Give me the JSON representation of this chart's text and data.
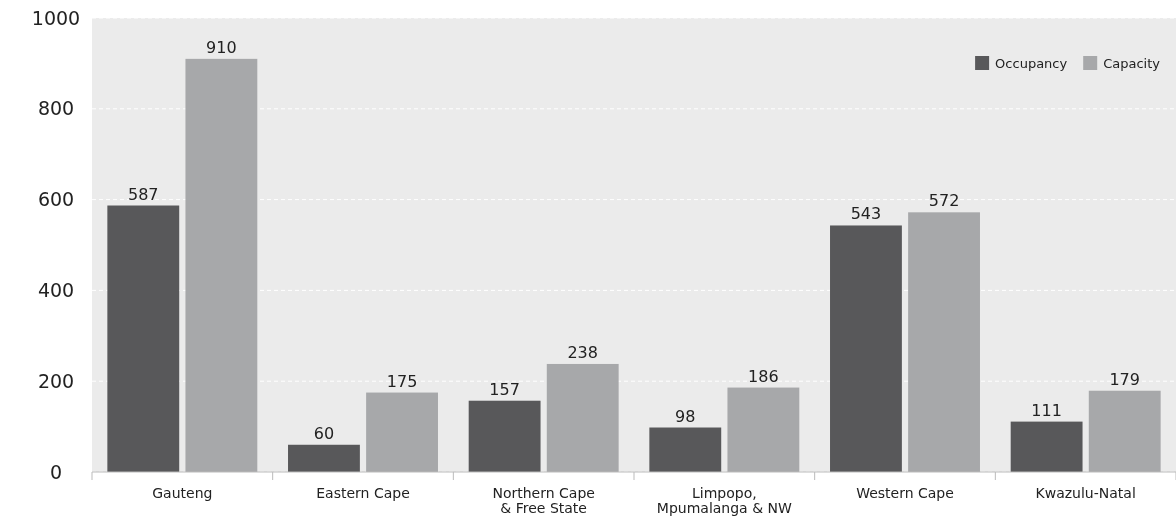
{
  "chart_data": {
    "type": "bar",
    "categories": [
      "Gauteng",
      "Eastern Cape",
      "Northern Cape\n& Free State",
      "Limpopo,\nMpumalanga & NW",
      "Western Cape",
      "Kwazulu-Natal"
    ],
    "series": [
      {
        "name": "Occupancy",
        "color": "#58585a",
        "values": [
          587,
          60,
          157,
          98,
          543,
          111
        ]
      },
      {
        "name": "Capacity",
        "color": "#a7a8aa",
        "values": [
          910,
          175,
          238,
          186,
          572,
          179
        ]
      }
    ],
    "ylim": [
      0,
      1000
    ],
    "yticks": [
      0,
      200,
      400,
      600,
      800,
      1000
    ],
    "grid": "y",
    "legend": "top right",
    "data_labels": true
  }
}
